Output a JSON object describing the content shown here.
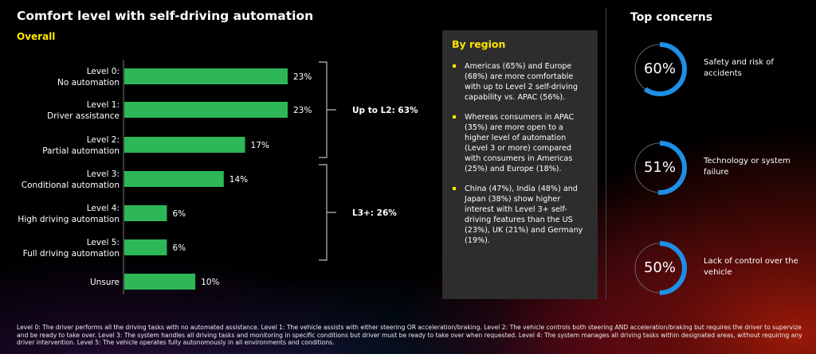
{
  "chart_data": {
    "type": "bar",
    "orientation": "horizontal",
    "title": "Comfort level with self-driving automation",
    "subtitle": "Overall",
    "categories": [
      [
        "Level 0:",
        "No automation"
      ],
      [
        "Level 1:",
        "Driver assistance"
      ],
      [
        "Level 2:",
        "Partial automation"
      ],
      [
        "Level 3:",
        "Conditional automation"
      ],
      [
        "Level 4:",
        "High driving automation"
      ],
      [
        "Level 5:",
        "Full driving automation"
      ],
      [
        "Unsure"
      ]
    ],
    "values": [
      23,
      23,
      17,
      14,
      6,
      6,
      10
    ],
    "value_labels": [
      "23%",
      "23%",
      "17%",
      "14%",
      "6%",
      "6%",
      "10%"
    ],
    "xlim": [
      0,
      25
    ],
    "bar_color": "#2db757",
    "groups": [
      {
        "label": "Up to L2: 63%",
        "from": 0,
        "to": 2
      },
      {
        "label": "L3+: 26%",
        "from": 3,
        "to": 5
      }
    ]
  },
  "region": {
    "title": "By region",
    "bullets": [
      "Americas (65%) and Europe (68%) are more comfortable with up to Level 2 self-driving capability vs. APAC (56%).",
      "Whereas consumers in APAC (35%) are more open to a higher level of automation (Level 3 or more) compared with consumers in Americas (25%) and Europe (18%).",
      "China (47%), India (48%) and Japan (38%) show higher interest with Level 3+ self-driving features than the US (23%), UK (21%) and Germany (19%)."
    ]
  },
  "concerns": {
    "title": "Top concerns",
    "accent": "#1e8fe6",
    "items": [
      {
        "value": 60,
        "label": "60%",
        "text": "Safety and risk of accidents"
      },
      {
        "value": 51,
        "label": "51%",
        "text": "Technology or system failure"
      },
      {
        "value": 50,
        "label": "50%",
        "text": "Lack of control over the vehicle"
      }
    ]
  },
  "footnote": "Level 0: The driver performs all the driving tasks with no automated assistance. Level 1: The vehicle assists with either steering OR acceleration/braking. Level 2: The vehicle controls both steering AND acceleration/braking but requires the driver to supervize and be ready to take over. Level 3: The system handles all driving tasks and monitoring in specific conditions but driver must be ready to take over when requested. Level 4: The system manages all driving tasks within designated areas, without requiring any driver intervention. Level 5: The vehicle operates fully autonomously in all environments and conditions."
}
